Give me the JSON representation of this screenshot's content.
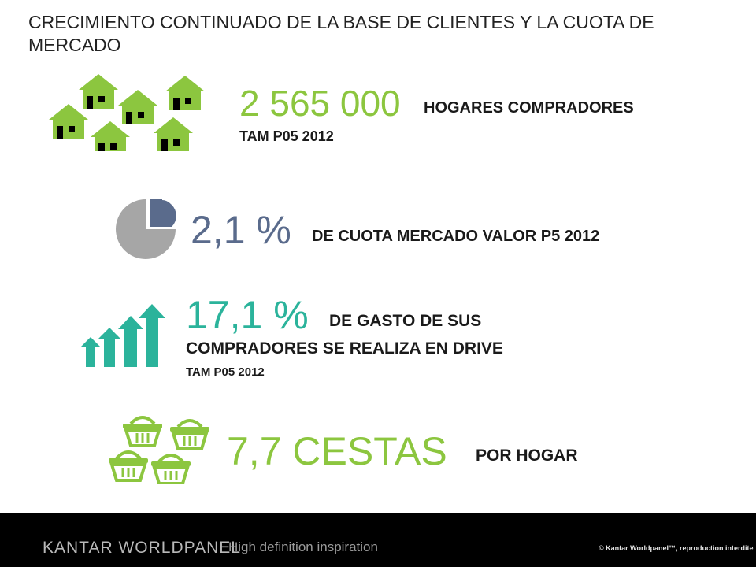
{
  "title": "CRECIMIENTO CONTINUADO DE LA BASE DE CLIENTES Y LA CUOTA DE MERCADO",
  "households": {
    "value": "2 565 000",
    "label": "HOGARES COMPRADORES",
    "period": "TAM P05 2012",
    "icon": "houses-icon"
  },
  "market_share": {
    "value": "2,1 %",
    "label": "DE CUOTA MERCADO VALOR P5 2012",
    "icon": "pie-share-icon"
  },
  "drive_spend": {
    "value": "17,1 %",
    "label_line1": "DE GASTO DE SUS",
    "label_line2": "COMPRADORES SE REALIZA EN DRIVE",
    "period": "TAM P05 2012",
    "icon": "growth-arrows-icon"
  },
  "baskets": {
    "value": "7,7 CESTAS",
    "label": "POR HOGAR",
    "icon": "baskets-icon"
  },
  "footer": {
    "brand": "KANTAR WORLDPANEL",
    "tagline": "High definition inspiration",
    "copyright": "© Kantar Worldpanel™, reproduction interdite"
  },
  "colors": {
    "green": "#8cc63f",
    "teal": "#2bb39b",
    "slate": "#5a6b8c",
    "grey": "#a6a6a6"
  }
}
